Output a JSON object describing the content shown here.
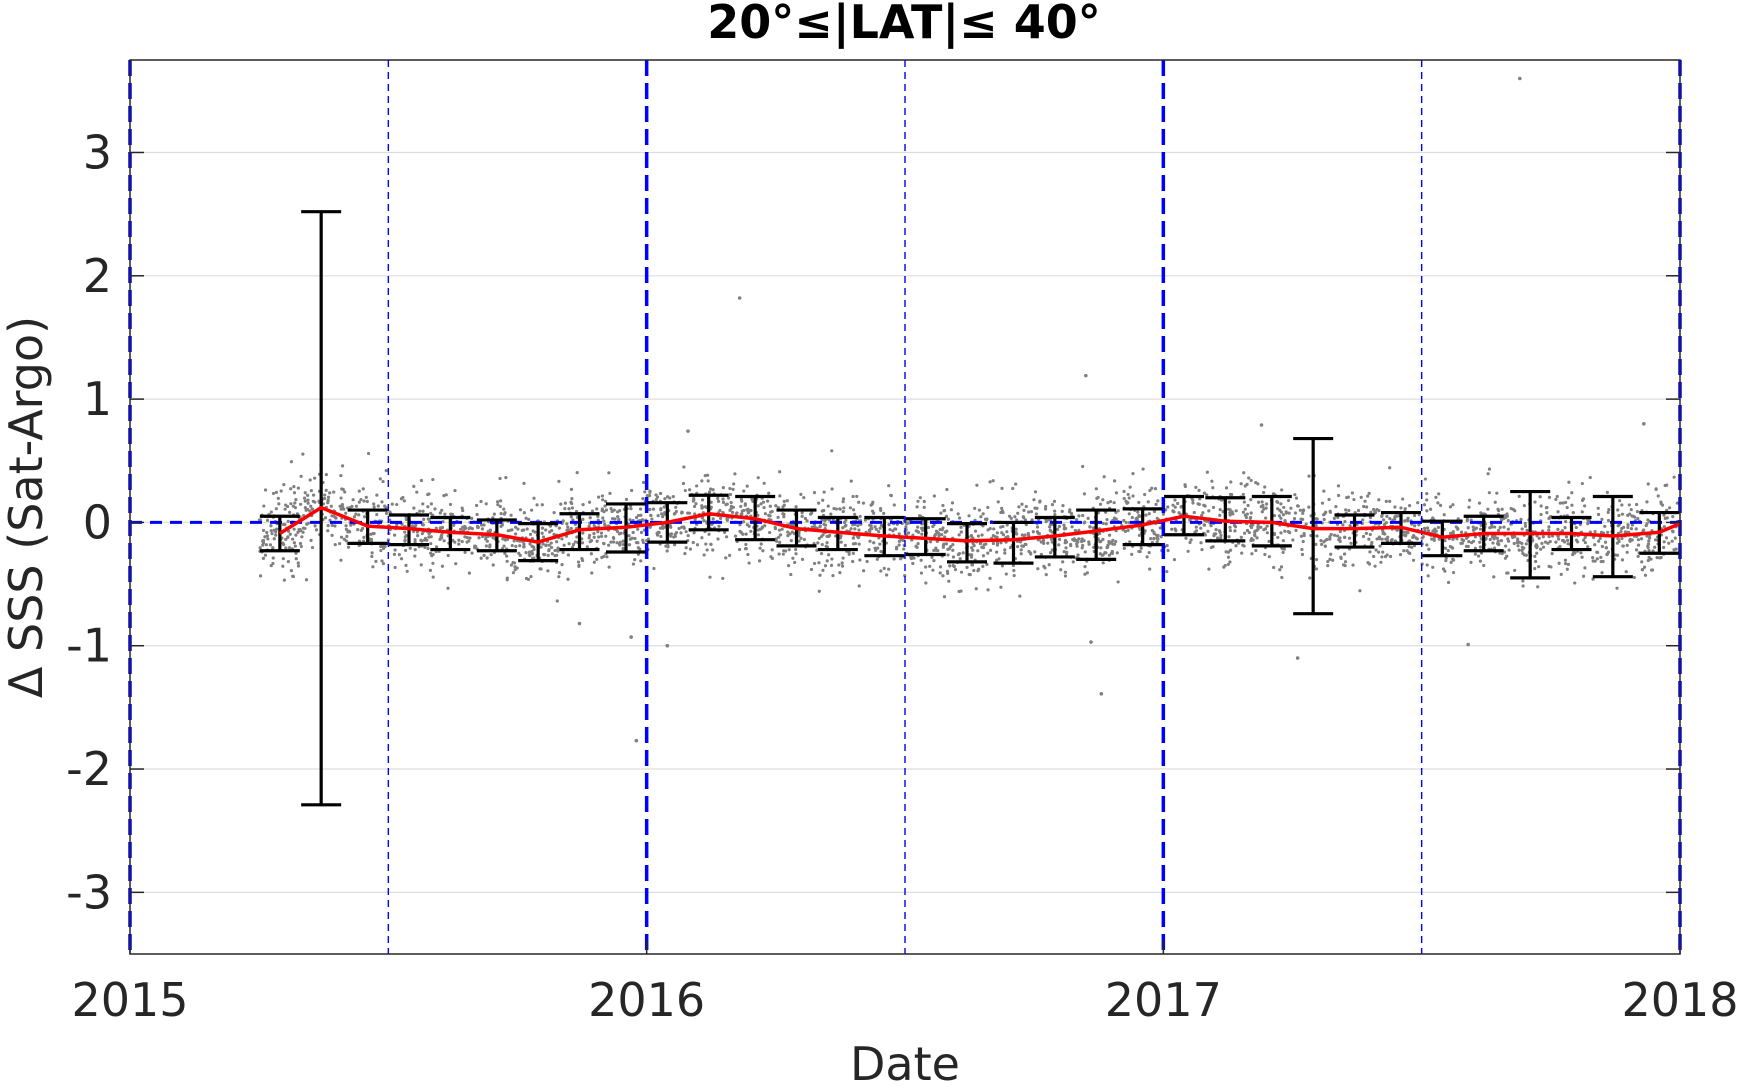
{
  "chart_data": {
    "type": "scatter",
    "title": "20°≤|LAT|≤ 40°",
    "xlabel": "Date",
    "ylabel": "Δ SSS (Sat-Argo)",
    "xlim": [
      2015,
      2018
    ],
    "ylim": [
      -3.5,
      3.75
    ],
    "xticks": [
      2015,
      2016,
      2017,
      2018
    ],
    "xtick_labels": [
      "2015",
      "2016",
      "2017",
      "2018"
    ],
    "yticks": [
      -3,
      -2,
      -1,
      0,
      1,
      2,
      3
    ],
    "ytick_labels": [
      "-3",
      "-2",
      "-1",
      "0",
      "1",
      "2",
      "3"
    ],
    "grid": true,
    "reference_lines": {
      "horizontal_dashed_y": 0,
      "year_lines_x": [
        2015,
        2016,
        2017,
        2018
      ],
      "half_year_lines_x": [
        2015.5,
        2016.5,
        2017.5
      ]
    },
    "colors": {
      "scatter": "#808080",
      "mean_line": "#ff0000",
      "error_bars": "#000000",
      "reference": "#0000ff",
      "grid": "#dddddd"
    },
    "monthly_mean": {
      "x": [
        2015.29,
        2015.37,
        2015.46,
        2015.54,
        2015.62,
        2015.71,
        2015.79,
        2015.87,
        2015.96,
        2016.04,
        2016.12,
        2016.21,
        2016.29,
        2016.37,
        2016.46,
        2016.54,
        2016.62,
        2016.71,
        2016.79,
        2016.87,
        2016.96,
        2017.04,
        2017.12,
        2017.21,
        2017.29,
        2017.37,
        2017.46,
        2017.54,
        2017.62,
        2017.71,
        2017.79,
        2017.87,
        2017.96,
        2018.0
      ],
      "y": [
        -0.09,
        0.12,
        -0.03,
        -0.05,
        -0.08,
        -0.1,
        -0.16,
        -0.06,
        -0.04,
        0.0,
        0.07,
        0.03,
        -0.05,
        -0.08,
        -0.11,
        -0.13,
        -0.15,
        -0.14,
        -0.11,
        -0.07,
        -0.02,
        0.05,
        0.01,
        0.0,
        -0.05,
        -0.05,
        -0.04,
        -0.12,
        -0.09,
        -0.09,
        -0.09,
        -0.11,
        -0.08,
        -0.01
      ]
    },
    "error_bars": [
      {
        "x": 2015.29,
        "low": -0.23,
        "high": 0.05
      },
      {
        "x": 2015.37,
        "low": -2.29,
        "high": 2.52
      },
      {
        "x": 2015.46,
        "low": -0.17,
        "high": 0.1
      },
      {
        "x": 2015.54,
        "low": -0.18,
        "high": 0.06
      },
      {
        "x": 2015.62,
        "low": -0.22,
        "high": 0.04
      },
      {
        "x": 2015.71,
        "low": -0.23,
        "high": 0.02
      },
      {
        "x": 2015.79,
        "low": -0.31,
        "high": -0.01
      },
      {
        "x": 2015.87,
        "low": -0.22,
        "high": 0.07
      },
      {
        "x": 2015.96,
        "low": -0.24,
        "high": 0.15
      },
      {
        "x": 2016.04,
        "low": -0.16,
        "high": 0.16
      },
      {
        "x": 2016.12,
        "low": -0.06,
        "high": 0.22
      },
      {
        "x": 2016.21,
        "low": -0.14,
        "high": 0.21
      },
      {
        "x": 2016.29,
        "low": -0.19,
        "high": 0.1
      },
      {
        "x": 2016.37,
        "low": -0.22,
        "high": 0.04
      },
      {
        "x": 2016.46,
        "low": -0.27,
        "high": 0.04
      },
      {
        "x": 2016.54,
        "low": -0.26,
        "high": 0.03
      },
      {
        "x": 2016.62,
        "low": -0.32,
        "high": -0.01
      },
      {
        "x": 2016.71,
        "low": -0.33,
        "high": 0.0
      },
      {
        "x": 2016.79,
        "low": -0.28,
        "high": 0.04
      },
      {
        "x": 2016.87,
        "low": -0.3,
        "high": 0.1
      },
      {
        "x": 2016.96,
        "low": -0.18,
        "high": 0.11
      },
      {
        "x": 2017.04,
        "low": -0.1,
        "high": 0.21
      },
      {
        "x": 2017.12,
        "low": -0.15,
        "high": 0.2
      },
      {
        "x": 2017.21,
        "low": -0.19,
        "high": 0.21
      },
      {
        "x": 2017.29,
        "low": -0.74,
        "high": 0.68
      },
      {
        "x": 2017.37,
        "low": -0.2,
        "high": 0.06
      },
      {
        "x": 2017.46,
        "low": -0.17,
        "high": 0.08
      },
      {
        "x": 2017.54,
        "low": -0.27,
        "high": 0.01
      },
      {
        "x": 2017.62,
        "low": -0.23,
        "high": 0.05
      },
      {
        "x": 2017.71,
        "low": -0.45,
        "high": 0.25
      },
      {
        "x": 2017.79,
        "low": -0.22,
        "high": 0.04
      },
      {
        "x": 2017.87,
        "low": -0.44,
        "high": 0.21
      },
      {
        "x": 2017.96,
        "low": -0.25,
        "high": 0.08
      }
    ],
    "outliers": [
      {
        "x": 2016.18,
        "y": 1.82
      },
      {
        "x": 2016.85,
        "y": 1.19
      },
      {
        "x": 2017.69,
        "y": 3.6
      },
      {
        "x": 2016.86,
        "y": -0.97
      },
      {
        "x": 2016.88,
        "y": -1.39
      },
      {
        "x": 2017.26,
        "y": -1.1
      },
      {
        "x": 2015.97,
        "y": -0.93
      },
      {
        "x": 2016.04,
        "y": -1.0
      },
      {
        "x": 2015.98,
        "y": -1.77
      },
      {
        "x": 2017.93,
        "y": 0.8
      },
      {
        "x": 2017.19,
        "y": 0.79
      },
      {
        "x": 2017.59,
        "y": -0.99
      },
      {
        "x": 2016.08,
        "y": 0.74
      },
      {
        "x": 2015.87,
        "y": -0.82
      }
    ],
    "scatter_cloud_spread": 0.2
  }
}
